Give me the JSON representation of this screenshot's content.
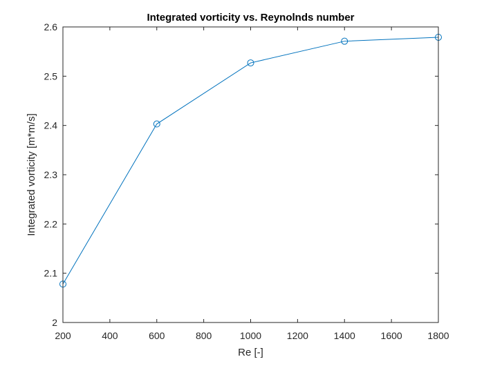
{
  "chart_data": {
    "type": "line",
    "title": "Integrated vorticity vs. Reynolnds number",
    "xlabel": "Re [-]",
    "ylabel": "Integrated vorticity [m*m/s]",
    "xlim": [
      200,
      1800
    ],
    "ylim": [
      2,
      2.6
    ],
    "xticks": [
      200,
      400,
      600,
      800,
      1000,
      1200,
      1400,
      1600,
      1800
    ],
    "xtick_labels": [
      "200",
      "400",
      "600",
      "800",
      "1000",
      "1200",
      "1400",
      "1600",
      "1800"
    ],
    "yticks": [
      2,
      2.1,
      2.2,
      2.3,
      2.4,
      2.5,
      2.6
    ],
    "ytick_labels": [
      "2",
      "2.1",
      "2.2",
      "2.3",
      "2.4",
      "2.5",
      "2.6"
    ],
    "grid": false,
    "marker": "circle",
    "series": [
      {
        "x": [
          200,
          600,
          1000,
          1400,
          1800
        ],
        "y": [
          2.078,
          2.403,
          2.527,
          2.571,
          2.579
        ],
        "color": "#0072BD"
      }
    ]
  }
}
